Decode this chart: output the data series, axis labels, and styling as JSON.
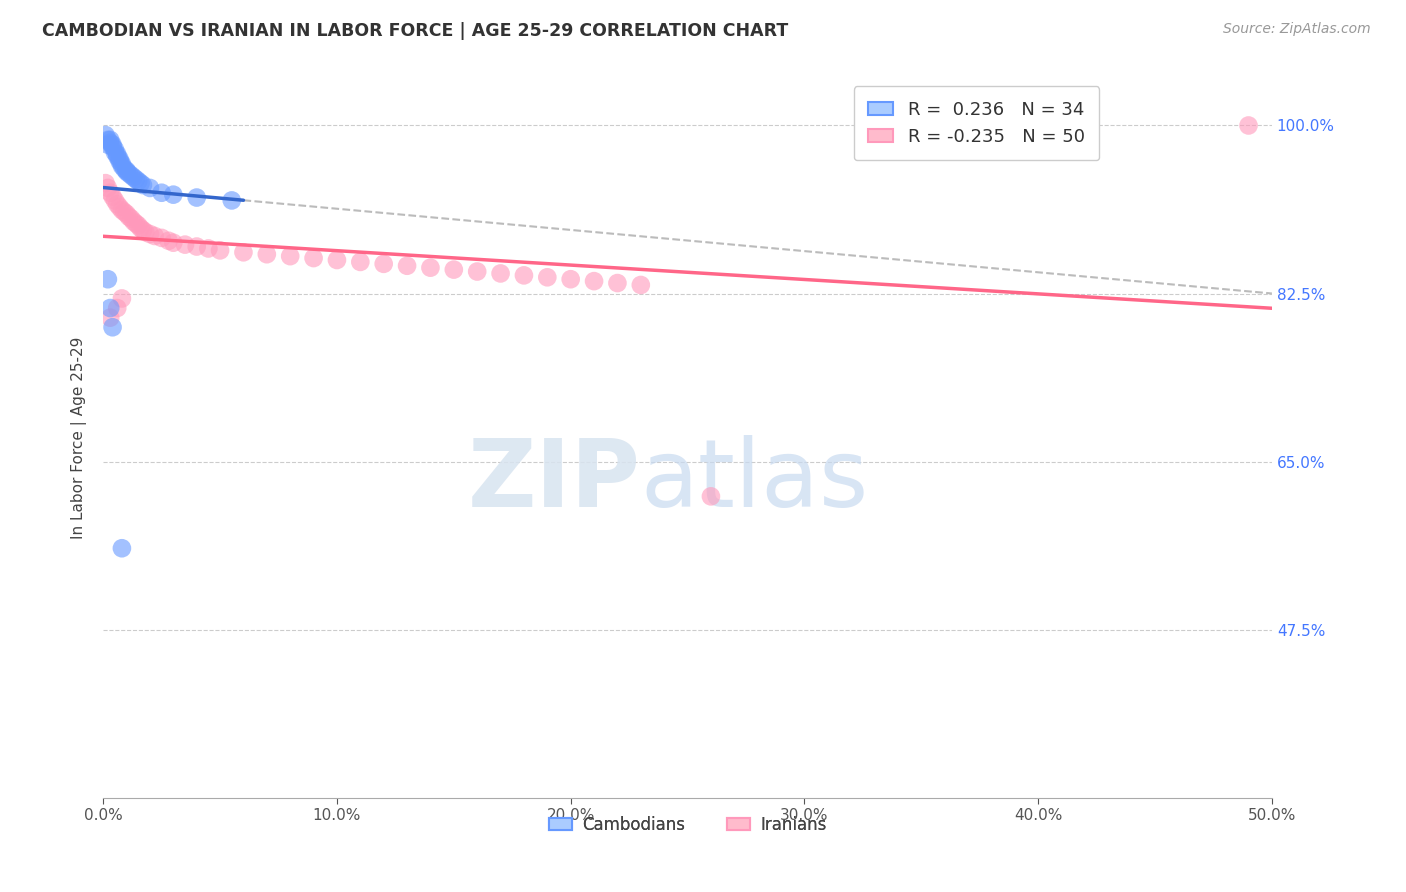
{
  "title": "CAMBODIAN VS IRANIAN IN LABOR FORCE | AGE 25-29 CORRELATION CHART",
  "source": "Source: ZipAtlas.com",
  "ylabel": "In Labor Force | Age 25-29",
  "xlim": [
    0.0,
    0.5
  ],
  "ylim": [
    0.3,
    1.05
  ],
  "xtick_labels": [
    "0.0%",
    "10.0%",
    "20.0%",
    "30.0%",
    "40.0%",
    "50.0%"
  ],
  "xtick_values": [
    0.0,
    0.1,
    0.2,
    0.3,
    0.4,
    0.5
  ],
  "ytick_labels": [
    "100.0%",
    "82.5%",
    "65.0%",
    "47.5%"
  ],
  "ytick_values": [
    1.0,
    0.825,
    0.65,
    0.475
  ],
  "cambodian_x": [
    0.001,
    0.002,
    0.002,
    0.003,
    0.003,
    0.004,
    0.004,
    0.005,
    0.005,
    0.006,
    0.006,
    0.007,
    0.007,
    0.008,
    0.008,
    0.009,
    0.01,
    0.01,
    0.011,
    0.012,
    0.013,
    0.014,
    0.015,
    0.016,
    0.017,
    0.02,
    0.025,
    0.03,
    0.04,
    0.055,
    0.002,
    0.003,
    0.004,
    0.008
  ],
  "cambodian_y": [
    0.99,
    0.985,
    0.98,
    0.985,
    0.982,
    0.98,
    0.978,
    0.975,
    0.972,
    0.97,
    0.968,
    0.965,
    0.963,
    0.96,
    0.958,
    0.955,
    0.953,
    0.952,
    0.95,
    0.948,
    0.946,
    0.944,
    0.942,
    0.94,
    0.938,
    0.935,
    0.93,
    0.928,
    0.925,
    0.922,
    0.84,
    0.81,
    0.79,
    0.56
  ],
  "iranian_x": [
    0.001,
    0.002,
    0.003,
    0.004,
    0.005,
    0.006,
    0.007,
    0.008,
    0.009,
    0.01,
    0.011,
    0.012,
    0.013,
    0.014,
    0.015,
    0.016,
    0.017,
    0.018,
    0.02,
    0.022,
    0.025,
    0.028,
    0.03,
    0.035,
    0.04,
    0.045,
    0.05,
    0.06,
    0.07,
    0.08,
    0.09,
    0.1,
    0.11,
    0.12,
    0.13,
    0.14,
    0.15,
    0.16,
    0.17,
    0.18,
    0.19,
    0.2,
    0.21,
    0.22,
    0.23,
    0.003,
    0.006,
    0.008,
    0.26,
    0.49
  ],
  "iranian_y": [
    0.94,
    0.935,
    0.93,
    0.926,
    0.922,
    0.918,
    0.915,
    0.912,
    0.91,
    0.908,
    0.905,
    0.903,
    0.9,
    0.898,
    0.896,
    0.893,
    0.891,
    0.889,
    0.887,
    0.885,
    0.883,
    0.88,
    0.878,
    0.876,
    0.874,
    0.872,
    0.87,
    0.868,
    0.866,
    0.864,
    0.862,
    0.86,
    0.858,
    0.856,
    0.854,
    0.852,
    0.85,
    0.848,
    0.846,
    0.844,
    0.842,
    0.84,
    0.838,
    0.836,
    0.834,
    0.8,
    0.81,
    0.82,
    0.614,
    1.0
  ],
  "cambodian_color": "#6699ff",
  "iranian_color": "#ff99bb",
  "cambodian_line_color": "#3366cc",
  "iranian_line_color": "#ff6688",
  "watermark_zip": "ZIP",
  "watermark_atlas": "atlas",
  "background_color": "#ffffff",
  "grid_color": "#cccccc"
}
